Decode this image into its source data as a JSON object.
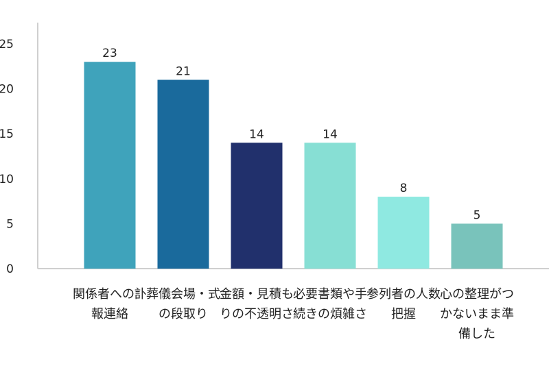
{
  "chart_data": {
    "type": "bar",
    "categories": [
      "関係者への訃報連絡",
      "葬儀会場・式の段取り",
      "金額・見積もりの不透明さ",
      "必要書類や手続きの煩雑さ",
      "参列者の人数把握",
      "心の整理がつかないまま準備した"
    ],
    "values": [
      23,
      21,
      14,
      14,
      8,
      5
    ],
    "colors": [
      "#3fa3bb",
      "#1a6a9c",
      "#21306c",
      "#87dfd4",
      "#8fe9e1",
      "#79c3bb"
    ],
    "yticks": [
      "0",
      "5",
      "10",
      "15",
      "20",
      "25"
    ],
    "ylim": [
      0,
      25
    ],
    "grid": false,
    "legend": "none",
    "data_labels": true
  }
}
